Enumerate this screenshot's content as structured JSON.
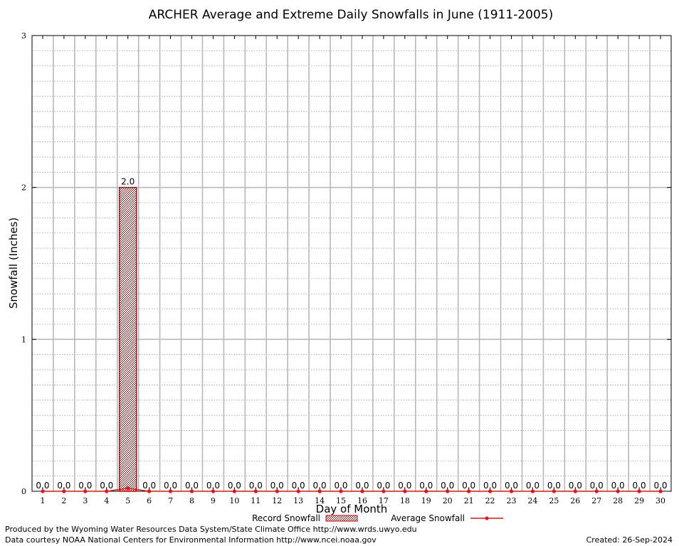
{
  "chart_data": {
    "type": "bar",
    "title": "ARCHER Average and Extreme Daily Snowfalls in June (1911-2005)",
    "xlabel": "Day of Month",
    "ylabel": "Snowfall (Inches)",
    "ylim": [
      0,
      3
    ],
    "yticks": [
      "0",
      "1",
      "2",
      "3"
    ],
    "grid": true,
    "categories": [
      "1",
      "2",
      "3",
      "4",
      "5",
      "6",
      "7",
      "8",
      "9",
      "10",
      "11",
      "12",
      "13",
      "14",
      "15",
      "16",
      "17",
      "18",
      "19",
      "20",
      "21",
      "22",
      "23",
      "24",
      "25",
      "26",
      "27",
      "28",
      "29",
      "30"
    ],
    "series": [
      {
        "name": "Record Snowfall",
        "kind": "bar",
        "color": "#cc0000",
        "values": [
          0,
          0,
          0,
          0,
          2.0,
          0,
          0,
          0,
          0,
          0,
          0,
          0,
          0,
          0,
          0,
          0,
          0,
          0,
          0,
          0,
          0,
          0,
          0,
          0,
          0,
          0,
          0,
          0,
          0,
          0
        ],
        "labels": [
          "0.0",
          "0.0",
          "0.0",
          "0.0",
          "2.0",
          "0.0",
          "0.0",
          "0.0",
          "0.0",
          "0.0",
          "0.0",
          "0.0",
          "0.0",
          "0.0",
          "0.0",
          "0.0",
          "0.0",
          "0.0",
          "0.0",
          "0.0",
          "0.0",
          "0.0",
          "0.0",
          "0.0",
          "0.0",
          "0.0",
          "0.0",
          "0.0",
          "0.0",
          "0.0"
        ]
      },
      {
        "name": "Average Snowfall",
        "kind": "line",
        "color": "#ee1111",
        "values": [
          0,
          0,
          0,
          0,
          0.02,
          0,
          0,
          0,
          0,
          0,
          0,
          0,
          0,
          0,
          0,
          0,
          0,
          0,
          0,
          0,
          0,
          0,
          0,
          0,
          0,
          0,
          0,
          0,
          0,
          0
        ]
      }
    ],
    "legend_position": "bottom"
  },
  "footer": {
    "left_line1": "Produced by the Wyoming Water Resources Data System/State Climate Office http://www.wrds.uwyo.edu",
    "left_line2": "Data courtesy NOAA National Centers for Environmental Information http://www.ncei.noaa.gov",
    "created": "Created:  26-Sep-2024"
  }
}
